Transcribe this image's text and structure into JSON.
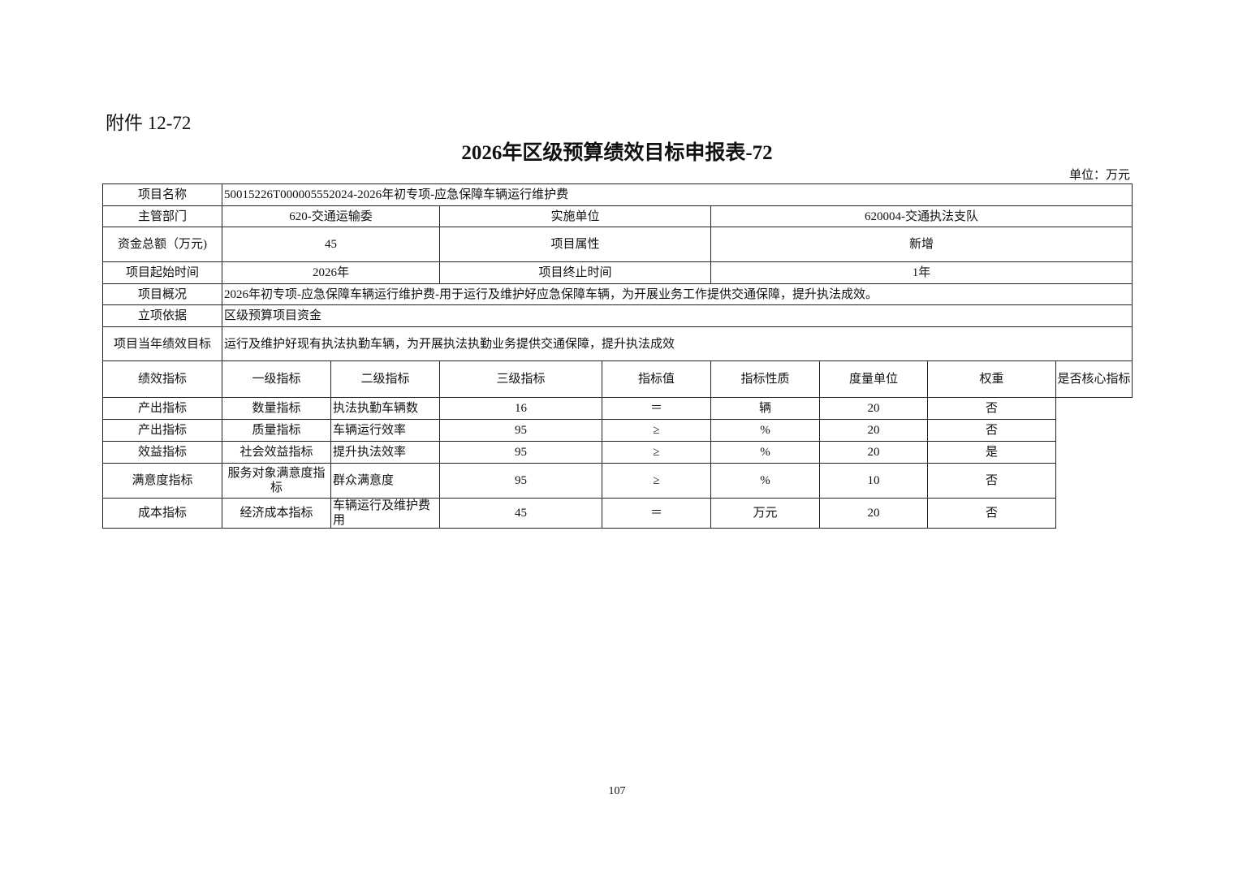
{
  "attachment": "附件 12-72",
  "title": "2026年区级预算绩效目标申报表-72",
  "unit": "单位：万元",
  "info": {
    "project_name_label": "项目名称",
    "project_name": "50015226T000005552024-2026年初专项-应急保障车辆运行维护费",
    "dept_label": "主管部门",
    "dept": "620-交通运输委",
    "impl_label": "实施单位",
    "impl": "620004-交通执法支队",
    "funds_label": "资金总额（万元)",
    "funds": "45",
    "attr_label": "项目属性",
    "attr": "新增",
    "start_label": "项目起始时间",
    "start": "2026年",
    "end_label": "项目终止时间",
    "end": "1年",
    "overview_label": "项目概况",
    "overview": "2026年初专项-应急保障车辆运行维护费-用于运行及维护好应急保障车辆，为开展业务工作提供交通保障，提升执法成效。",
    "basis_label": "立项依据",
    "basis": "区级预算项目资金",
    "goal_label": "项目当年绩效目标",
    "goal": "运行及维护好现有执法执勤车辆，为开展执法执勤业务提供交通保障，提升执法成效"
  },
  "indicators": {
    "label": "绩效指标",
    "headers": [
      "一级指标",
      "二级指标",
      "三级指标",
      "指标值",
      "指标性质",
      "度量单位",
      "权重",
      "是否核心指标"
    ],
    "rows": [
      [
        "产出指标",
        "数量指标",
        "执法执勤车辆数",
        "16",
        "＝",
        "辆",
        "20",
        "否"
      ],
      [
        "产出指标",
        "质量指标",
        "车辆运行效率",
        "95",
        "≥",
        "%",
        "20",
        "否"
      ],
      [
        "效益指标",
        "社会效益指标",
        "提升执法效率",
        "95",
        "≥",
        "%",
        "20",
        "是"
      ],
      [
        "满意度指标",
        "服务对象满意度指标",
        "群众满意度",
        "95",
        "≥",
        "%",
        "10",
        "否"
      ],
      [
        "成本指标",
        "经济成本指标",
        "车辆运行及维护费用",
        "45",
        "＝",
        "万元",
        "20",
        "否"
      ]
    ]
  },
  "page_number": "107"
}
